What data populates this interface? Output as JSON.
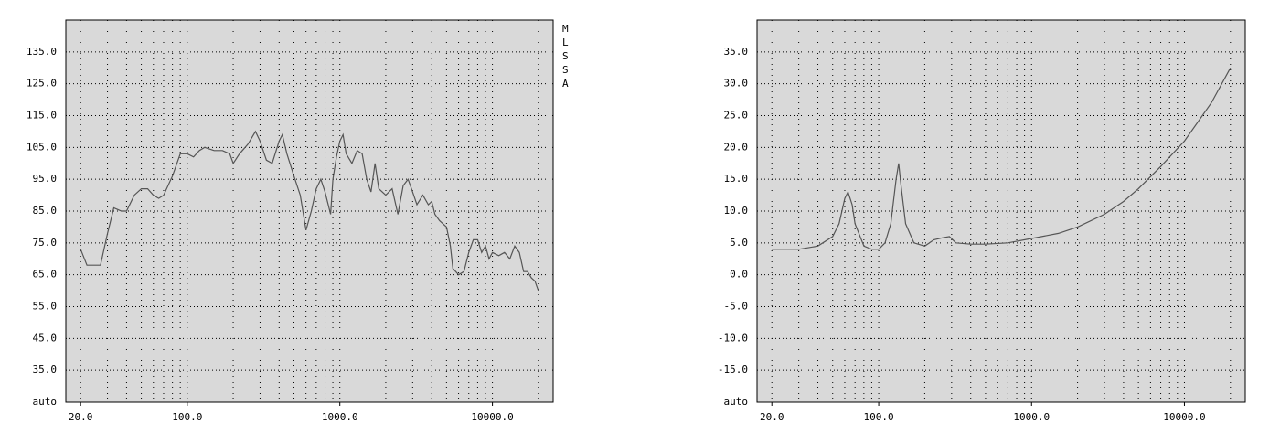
{
  "chart_data": [
    {
      "type": "line",
      "log_x": true,
      "grid": true,
      "annotation": "MLSSA",
      "background": "#d9d9d9",
      "xlim": [
        16,
        25000
      ],
      "ylim": [
        25,
        145
      ],
      "xticks": [
        {
          "value": 20,
          "label": "20.0"
        },
        {
          "value": 100,
          "label": "100.0"
        },
        {
          "value": 1000,
          "label": "1000.0"
        },
        {
          "value": 10000,
          "label": "10000.0"
        }
      ],
      "xgrid": [
        20,
        30,
        40,
        50,
        60,
        70,
        80,
        90,
        100,
        200,
        300,
        400,
        500,
        600,
        700,
        800,
        900,
        1000,
        2000,
        3000,
        4000,
        5000,
        6000,
        7000,
        8000,
        9000,
        10000,
        20000
      ],
      "yticks": [
        {
          "value": 25,
          "label": "auto"
        },
        {
          "value": 35,
          "label": "35.0"
        },
        {
          "value": 45,
          "label": "45.0"
        },
        {
          "value": 55,
          "label": "55.0"
        },
        {
          "value": 65,
          "label": "65.0"
        },
        {
          "value": 75,
          "label": "75.0"
        },
        {
          "value": 85,
          "label": "85.0"
        },
        {
          "value": 95,
          "label": "95.0"
        },
        {
          "value": 105,
          "label": "105.0"
        },
        {
          "value": 115,
          "label": "115.0"
        },
        {
          "value": 125,
          "label": "125.0"
        },
        {
          "value": 135,
          "label": "135.0"
        }
      ],
      "x": [
        20,
        22,
        25,
        27,
        30,
        33,
        37,
        40,
        45,
        50,
        55,
        60,
        65,
        70,
        80,
        90,
        100,
        110,
        120,
        130,
        150,
        170,
        190,
        200,
        220,
        250,
        280,
        300,
        330,
        360,
        400,
        420,
        450,
        500,
        550,
        600,
        650,
        700,
        750,
        800,
        870,
        900,
        950,
        1000,
        1050,
        1100,
        1200,
        1300,
        1400,
        1500,
        1600,
        1700,
        1800,
        2000,
        2200,
        2400,
        2600,
        2800,
        3000,
        3200,
        3500,
        3800,
        4000,
        4200,
        4500,
        5000,
        5300,
        5500,
        6000,
        6500,
        7000,
        7500,
        8000,
        8500,
        9000,
        9500,
        10000,
        11000,
        12000,
        13000,
        14000,
        15000,
        16000,
        17000,
        18000,
        19000,
        20000
      ],
      "series": [
        {
          "color": "#555555",
          "values": [
            73,
            68,
            68,
            68,
            78,
            86,
            85,
            85,
            90,
            92,
            92,
            90,
            89,
            90,
            96,
            103,
            103,
            102,
            104,
            105,
            104,
            104,
            103,
            100,
            103,
            106,
            110,
            107,
            101,
            100,
            107,
            109,
            103,
            96,
            90,
            79,
            85,
            92,
            95,
            91,
            84,
            95,
            102,
            107,
            109,
            103,
            100,
            104,
            103,
            95,
            91,
            100,
            92,
            90,
            92,
            84,
            93,
            95,
            91,
            87,
            90,
            87,
            88,
            84,
            82,
            80,
            74,
            67,
            65,
            66,
            72,
            76,
            76,
            72,
            74,
            70,
            72,
            71,
            72,
            70,
            74,
            72,
            66,
            66,
            64,
            63,
            60
          ]
        }
      ]
    },
    {
      "type": "line",
      "log_x": true,
      "grid": true,
      "background": "#d9d9d9",
      "xlim": [
        16,
        25000
      ],
      "ylim": [
        -20,
        40
      ],
      "xticks": [
        {
          "value": 20,
          "label": "20.0"
        },
        {
          "value": 100,
          "label": "100.0"
        },
        {
          "value": 1000,
          "label": "1000.0"
        },
        {
          "value": 10000,
          "label": "10000.0"
        }
      ],
      "xgrid": [
        20,
        30,
        40,
        50,
        60,
        70,
        80,
        90,
        100,
        200,
        300,
        400,
        500,
        600,
        700,
        800,
        900,
        1000,
        2000,
        3000,
        4000,
        5000,
        6000,
        7000,
        8000,
        9000,
        10000,
        20000
      ],
      "yticks": [
        {
          "value": -20,
          "label": "auto"
        },
        {
          "value": -15,
          "label": "-15.0"
        },
        {
          "value": -10,
          "label": "-10.0"
        },
        {
          "value": -5,
          "label": "-5.0"
        },
        {
          "value": 0,
          "label": "0.0"
        },
        {
          "value": 5,
          "label": "5.0"
        },
        {
          "value": 10,
          "label": "10.0"
        },
        {
          "value": 15,
          "label": "15.0"
        },
        {
          "value": 20,
          "label": "20.0"
        },
        {
          "value": 25,
          "label": "25.0"
        },
        {
          "value": 30,
          "label": "30.0"
        },
        {
          "value": 35,
          "label": "35.0"
        }
      ],
      "x": [
        20,
        30,
        40,
        50,
        55,
        60,
        63,
        67,
        70,
        80,
        90,
        100,
        110,
        120,
        130,
        135,
        140,
        150,
        170,
        200,
        230,
        260,
        290,
        320,
        400,
        500,
        700,
        1000,
        1500,
        2000,
        3000,
        4000,
        5000,
        7000,
        10000,
        15000,
        20000
      ],
      "series": [
        {
          "color": "#555555",
          "values": [
            4,
            4,
            4.5,
            6,
            8,
            12,
            13,
            11,
            8,
            4.5,
            4,
            4,
            5,
            8,
            15,
            17.5,
            14,
            8,
            5,
            4.5,
            5.5,
            5.8,
            6,
            5,
            4.8,
            4.8,
            5,
            5.7,
            6.5,
            7.5,
            9.5,
            11.5,
            13.5,
            17,
            21,
            27,
            32.5
          ]
        }
      ]
    }
  ]
}
